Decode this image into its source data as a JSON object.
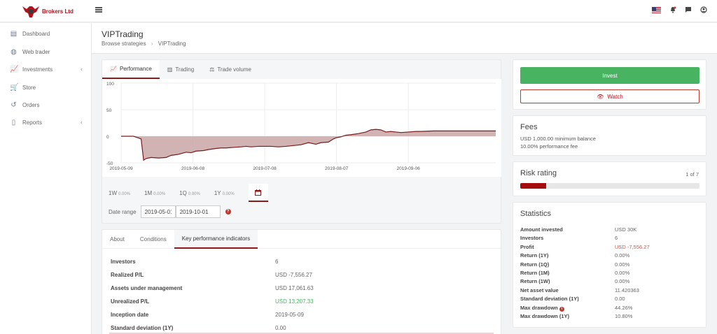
{
  "app": {
    "brand": "Brokers Ltd",
    "logo_icon": "bull-logo"
  },
  "topbar": {
    "icons": [
      "us-flag-icon",
      "bell-icon",
      "chat-icon",
      "user-icon"
    ]
  },
  "sidebar": {
    "items": [
      {
        "label": "Dashboard",
        "icon": "dashboard-icon",
        "has_chevron": false
      },
      {
        "label": "Web trader",
        "icon": "globe-icon",
        "has_chevron": false
      },
      {
        "label": "Investments",
        "icon": "chart-line-icon",
        "has_chevron": true
      },
      {
        "label": "Store",
        "icon": "cart-icon",
        "has_chevron": false
      },
      {
        "label": "Orders",
        "icon": "history-icon",
        "has_chevron": false
      },
      {
        "label": "Reports",
        "icon": "file-icon",
        "has_chevron": true
      }
    ]
  },
  "header": {
    "title": "VIPTrading",
    "breadcrumb": [
      "Browse strategies",
      "VIPTrading"
    ]
  },
  "chart_tabs": [
    {
      "label": "Performance",
      "active": true
    },
    {
      "label": "Trading",
      "active": false
    },
    {
      "label": "Trade volume",
      "active": false
    }
  ],
  "chart_data": {
    "type": "area",
    "title": "",
    "xlabel": "",
    "ylabel": "",
    "ylim": [
      -50,
      100
    ],
    "yticks": [
      "100",
      "50",
      "0",
      "-50"
    ],
    "xtick_labels": [
      "2019-05-09",
      "2019-06-08",
      "2019-07-08",
      "2019-08-07",
      "2019-09-06"
    ],
    "x": [
      0,
      5,
      8,
      9,
      10,
      12,
      15,
      18,
      20,
      23,
      26,
      28,
      30,
      33,
      35,
      38,
      40,
      42,
      45,
      48,
      50,
      52,
      55,
      58,
      60,
      63,
      66,
      68,
      70,
      72,
      75,
      78,
      80,
      83,
      85,
      86,
      88,
      90,
      92,
      95,
      98,
      100,
      102,
      104,
      106,
      108,
      110,
      112,
      115,
      118,
      120,
      125,
      130,
      135,
      140,
      145,
      150
    ],
    "y": [
      0,
      0,
      -5,
      -45,
      -42,
      -40,
      -41,
      -40,
      -36,
      -34,
      -30,
      -31,
      -28,
      -27,
      -25,
      -23,
      -22,
      -22,
      -21,
      -20,
      -19,
      -20,
      -19,
      -19,
      -19,
      -20,
      -19,
      -18,
      -17,
      -16,
      -12,
      -15,
      -12,
      -11,
      -5,
      -3,
      -1,
      2,
      3,
      5,
      8,
      12,
      13,
      12,
      8,
      9,
      8,
      7,
      8,
      9,
      9,
      10,
      10,
      10,
      10,
      10,
      10
    ],
    "grid": true,
    "legend": "none"
  },
  "period_buttons": [
    {
      "label": "1W",
      "value": "0.00%"
    },
    {
      "label": "1M",
      "value": "0.00%"
    },
    {
      "label": "1Q",
      "value": "0.00%"
    },
    {
      "label": "1Y",
      "value": "0.00%"
    }
  ],
  "date_range": {
    "label": "Date range",
    "from": "2019-05-01",
    "to": "2019-10-01"
  },
  "info_tabs": [
    {
      "label": "About",
      "active": false
    },
    {
      "label": "Conditions",
      "active": false
    },
    {
      "label": "Key performance indicators",
      "active": true
    }
  ],
  "kpis": [
    {
      "label": "Investors",
      "value": "6",
      "color": "#666666"
    },
    {
      "label": "Realized P/L",
      "value": "USD -7,556.27",
      "color": "#666666"
    },
    {
      "label": "Assets under management",
      "value": "USD 17,061.63",
      "color": "#666666"
    },
    {
      "label": "Unrealized P/L",
      "value": "USD 13,207.33",
      "color": "#48b461"
    },
    {
      "label": "Inception date",
      "value": "2019-05-09",
      "color": "#666666"
    },
    {
      "label": "Standard deviation (1Y)",
      "value": "0.00",
      "color": "#666666"
    }
  ],
  "actions": {
    "invest": "Invest",
    "watch": "Watch"
  },
  "fees": {
    "title": "Fees",
    "lines": [
      "USD 1,000.00 minimum balance",
      "10.00% performance fee"
    ]
  },
  "risk": {
    "title": "Risk rating",
    "value_text": "1 of 7",
    "value": 1,
    "max": 7,
    "color": "#a50d0d"
  },
  "statistics": {
    "title": "Statistics",
    "rows": [
      {
        "label": "Amount invested",
        "value": "USD 30K",
        "color": "#666666",
        "info": false
      },
      {
        "label": "Investors",
        "value": "6",
        "color": "#666666",
        "info": false
      },
      {
        "label": "Profit",
        "value": "USD -7,556.27",
        "color": "#d9534f",
        "info": false
      },
      {
        "label": "Return (1Y)",
        "value": "0.00%",
        "color": "#666666",
        "info": false
      },
      {
        "label": "Return (1Q)",
        "value": "0.00%",
        "color": "#666666",
        "info": false
      },
      {
        "label": "Return (1M)",
        "value": "0.00%",
        "color": "#666666",
        "info": false
      },
      {
        "label": "Return (1W)",
        "value": "0.00%",
        "color": "#666666",
        "info": false
      },
      {
        "label": "Net asset value",
        "value": "11.420363",
        "color": "#666666",
        "info": false
      },
      {
        "label": "Standard deviation (1Y)",
        "value": "0.00",
        "color": "#666666",
        "info": false
      },
      {
        "label": "Max drawdown",
        "value": "44.26%",
        "color": "#666666",
        "info": true
      },
      {
        "label": "Max drawdown (1Y)",
        "value": "10.80%",
        "color": "#666666",
        "info": false
      }
    ]
  }
}
